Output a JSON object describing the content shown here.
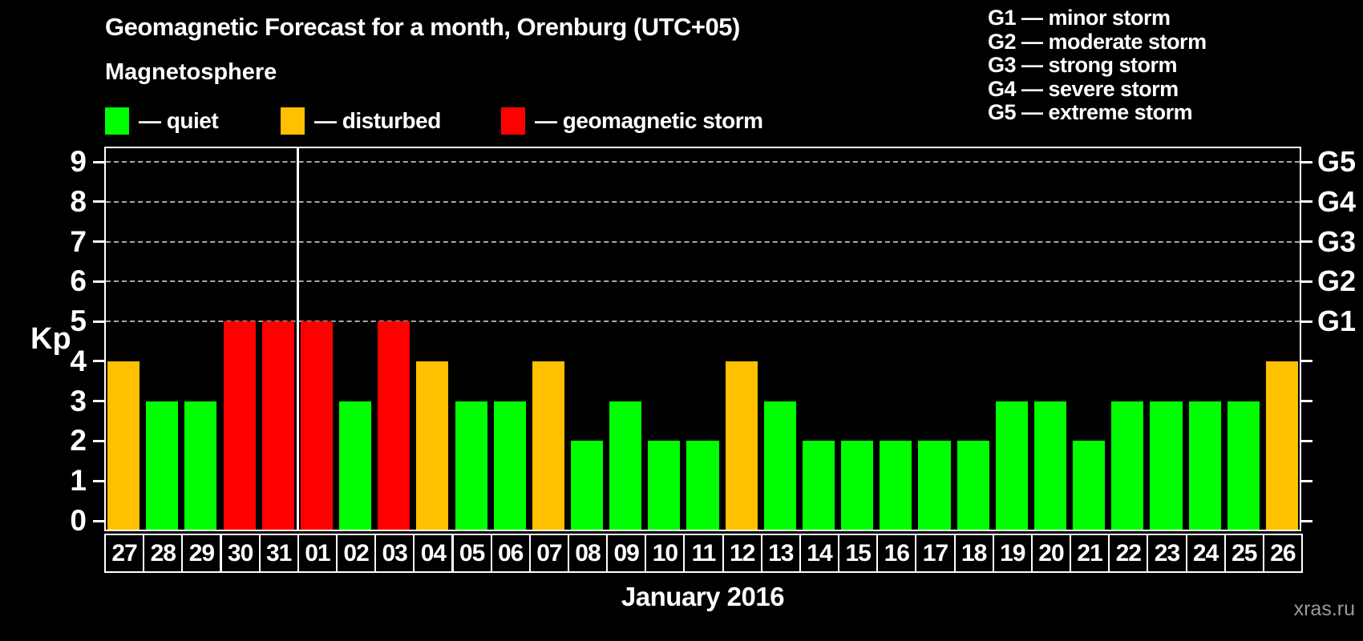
{
  "title": "Geomagnetic Forecast for a month, Orenburg (UTC+05)",
  "subtitle": "Magnetosphere",
  "legend": {
    "items": [
      {
        "key": "quiet",
        "label": "— quiet",
        "color": "#00ff00"
      },
      {
        "key": "disturbed",
        "label": "— disturbed",
        "color": "#ffc000"
      },
      {
        "key": "storm",
        "label": "— geomagnetic storm",
        "color": "#ff0000"
      }
    ]
  },
  "storm_legend": [
    "G1 — minor storm",
    "G2 — moderate storm",
    "G3 — strong storm",
    "G4 — severe storm",
    "G5 — extreme storm"
  ],
  "watermark": "xras.ru",
  "chart_data": {
    "type": "bar",
    "title": "Geomagnetic Forecast for a month, Orenburg (UTC+05)",
    "xlabel": "January 2016",
    "ylabel": "Kp",
    "ylim": [
      0,
      9
    ],
    "yticks": [
      0,
      1,
      2,
      3,
      4,
      5,
      6,
      7,
      8,
      9
    ],
    "gridlines_kp": [
      5,
      6,
      7,
      8,
      9
    ],
    "grid": "dashed horizontal at Kp 5-9",
    "legend_position": "top",
    "right_labels": [
      {
        "kp": 9,
        "label": "G5"
      },
      {
        "kp": 8,
        "label": "G4"
      },
      {
        "kp": 7,
        "label": "G3"
      },
      {
        "kp": 6,
        "label": "G2"
      },
      {
        "kp": 5,
        "label": "G1"
      }
    ],
    "month_separator_after_category_index": 4,
    "categories": [
      "27",
      "28",
      "29",
      "30",
      "31",
      "01",
      "02",
      "03",
      "04",
      "05",
      "06",
      "07",
      "08",
      "09",
      "10",
      "11",
      "12",
      "13",
      "14",
      "15",
      "16",
      "17",
      "18",
      "19",
      "20",
      "21",
      "22",
      "23",
      "24",
      "25",
      "26"
    ],
    "values": [
      4,
      3,
      3,
      5,
      5,
      5,
      3,
      5,
      4,
      3,
      3,
      4,
      2,
      3,
      2,
      2,
      4,
      3,
      2,
      2,
      2,
      2,
      2,
      3,
      3,
      2,
      3,
      3,
      3,
      3,
      4
    ],
    "statuses": [
      "disturbed",
      "quiet",
      "quiet",
      "storm",
      "storm",
      "storm",
      "quiet",
      "storm",
      "disturbed",
      "quiet",
      "quiet",
      "disturbed",
      "quiet",
      "quiet",
      "quiet",
      "quiet",
      "disturbed",
      "quiet",
      "quiet",
      "quiet",
      "quiet",
      "quiet",
      "quiet",
      "quiet",
      "quiet",
      "quiet",
      "quiet",
      "quiet",
      "quiet",
      "quiet",
      "disturbed"
    ],
    "status_colors": {
      "quiet": "#00ff00",
      "disturbed": "#ffc000",
      "storm": "#ff0000"
    }
  }
}
